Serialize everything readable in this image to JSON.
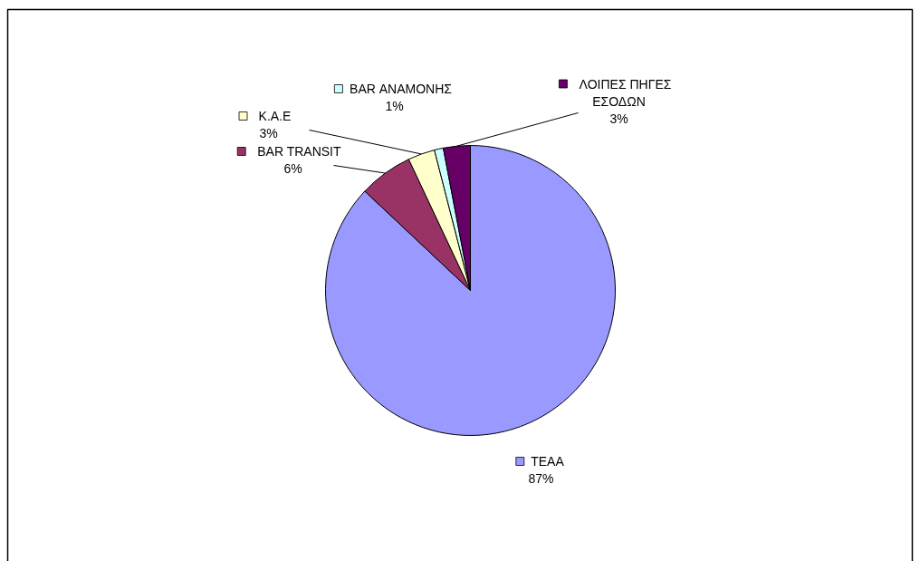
{
  "chart_data": {
    "type": "pie",
    "categories": [
      "ΤΕΑΑ",
      "BAR TRANSIT",
      "Κ.Α.Ε",
      "BAR ΑΝΑΜΟΝΗΣ",
      "ΛΟΙΠΕΣ ΠΗΓΕΣ ΕΣΟΔΩΝ"
    ],
    "values": [
      87,
      6,
      3,
      1,
      3
    ],
    "colors": [
      "#9999ff",
      "#993366",
      "#ffffcc",
      "#ccffff",
      "#660066"
    ],
    "value_labels": [
      "87%",
      "6%",
      "3%",
      "1%",
      "3%"
    ],
    "legend": "top"
  }
}
